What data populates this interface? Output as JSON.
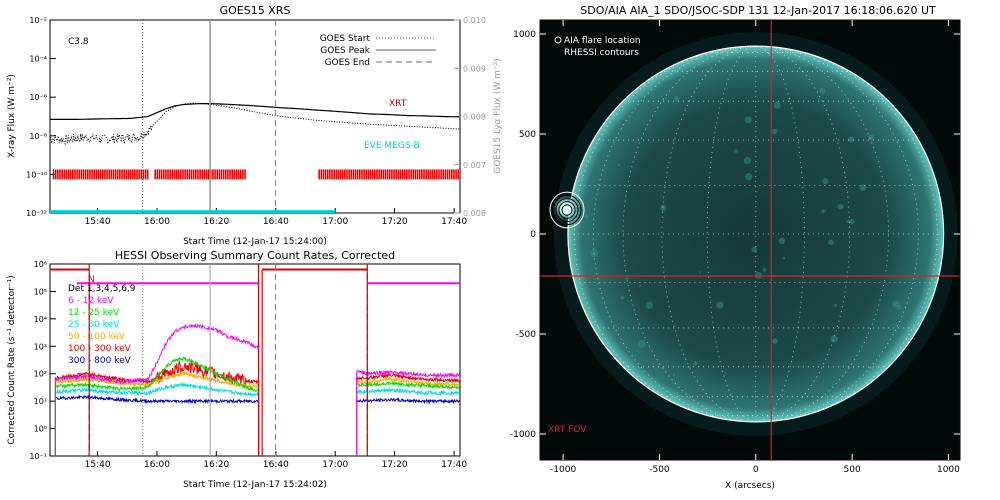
{
  "chart_data": [
    {
      "type": "line",
      "title": "GOES15 XRS",
      "xlabel": "Start Time (12-Jan-17 15:24:00)",
      "ylabel": "X-ray Flux (W m⁻²)",
      "ylabel_right": "GOES15 Lyα Flux (W m⁻²)",
      "flare_class": "C3.8",
      "ylim_log10": [
        -12,
        -2
      ],
      "ylim_right": [
        0.006,
        0.01
      ],
      "y_ticks": [
        "10⁻¹²",
        "10⁻¹⁰",
        "10⁻⁸",
        "10⁻⁶",
        "10⁻⁴",
        "10⁻²"
      ],
      "y_ticks_log10": [
        -12,
        -10,
        -8,
        -6,
        -4,
        -2
      ],
      "y_ticks_right": [
        "0.006",
        "0.007",
        "0.008",
        "0.009",
        "0.010"
      ],
      "y_ticks_right_values": [
        0.006,
        0.007,
        0.008,
        0.009,
        0.01
      ],
      "xlim_min": [
        15.4,
        17.7
      ],
      "x_ticks": [
        "15:40",
        "16:00",
        "16:20",
        "16:40",
        "17:00",
        "17:20",
        "17:40"
      ],
      "x_ticks_min": [
        15.667,
        16.0,
        16.333,
        16.667,
        17.0,
        17.333,
        17.667
      ],
      "legend": [
        {
          "label": "GOES Start",
          "style": "dotted",
          "time": 15.92
        },
        {
          "label": "GOES Peak",
          "style": "solid",
          "time": 16.298
        },
        {
          "label": "GOES End",
          "style": "dashed",
          "time": 16.665
        }
      ],
      "series": [
        {
          "name": "XRT",
          "color": "#cc0000",
          "axis": "left",
          "x": [
            15.4,
            15.55,
            15.7,
            15.85,
            15.95,
            16.0,
            16.05,
            16.1,
            16.15,
            16.2,
            16.25,
            16.3,
            16.4,
            16.5,
            16.6,
            16.7,
            16.8,
            16.9,
            17.0,
            17.1,
            17.2,
            17.3,
            17.4,
            17.5,
            17.6,
            17.7
          ],
          "log10_flux": [
            -7.15,
            -7.15,
            -7.12,
            -7.1,
            -7.0,
            -6.8,
            -6.6,
            -6.45,
            -6.38,
            -6.35,
            -6.33,
            -6.33,
            -6.37,
            -6.42,
            -6.48,
            -6.55,
            -6.6,
            -6.67,
            -6.73,
            -6.8,
            -6.87,
            -6.9,
            -6.95,
            -6.97,
            -7.0,
            -7.02
          ]
        },
        {
          "name": "Lyα",
          "color": "#000000",
          "axis": "right",
          "x": [
            15.4,
            15.5,
            15.6,
            15.7,
            15.8,
            15.9,
            15.95,
            16.0,
            16.05,
            16.1,
            16.15,
            16.2,
            16.25,
            16.3,
            16.4,
            16.5,
            16.6,
            16.7,
            16.8,
            16.9,
            17.0,
            17.2,
            17.4,
            17.6,
            17.7
          ],
          "values": [
            0.00755,
            0.00752,
            0.00757,
            0.00753,
            0.00755,
            0.00758,
            0.0077,
            0.0079,
            0.0081,
            0.0082,
            0.00826,
            0.00828,
            0.00827,
            0.00825,
            0.0082,
            0.00813,
            0.00806,
            0.008,
            0.00796,
            0.00792,
            0.00789,
            0.00784,
            0.0078,
            0.00776,
            0.00774
          ]
        },
        {
          "name": "EVE MEGS-B",
          "color": "#00d0d0",
          "axis": "left",
          "x": [
            15.4,
            17.0
          ],
          "log10_flux": [
            -11.9,
            -11.9
          ]
        }
      ],
      "xrt_coverage": {
        "label": "XRT",
        "level_log10": -10,
        "intervals_min": [
          [
            15.42,
            15.95
          ],
          [
            15.99,
            16.5
          ],
          [
            16.91,
            17.7
          ]
        ]
      },
      "eve_label": "EVE MEGS-B"
    },
    {
      "type": "line",
      "title": "HESSI Observing Summary Count Rates, Corrected",
      "xlabel": "Start Time (12-Jan-17 15:24:02)",
      "ylabel": "Corrected Count Rate (s⁻¹ detector⁻¹)",
      "ylim_log10": [
        -1,
        6
      ],
      "y_ticks": [
        "10⁻¹",
        "10⁰",
        "10¹",
        "10²",
        "10³",
        "10⁴",
        "10⁵",
        "10⁶"
      ],
      "y_ticks_log10": [
        -1,
        0,
        1,
        2,
        3,
        4,
        5,
        6
      ],
      "xlim_min": [
        15.4,
        17.7
      ],
      "x_ticks": [
        "15:40",
        "16:00",
        "16:20",
        "16:40",
        "17:00",
        "17:20",
        "17:40"
      ],
      "x_ticks_min": [
        15.667,
        16.0,
        16.333,
        16.667,
        17.0,
        17.333,
        17.667
      ],
      "detectors": "Det 1,3,4,5,6,9",
      "night_label": "N",
      "vlines": [
        {
          "time": 15.92,
          "style": "dotted",
          "color": "#888888"
        },
        {
          "time": 16.298,
          "style": "solid",
          "color": "#aaaaaa"
        },
        {
          "time": 16.665,
          "style": "dashed",
          "color": "#888888"
        },
        {
          "time": 15.62,
          "style": "dashed",
          "color": "#dd0000"
        },
        {
          "time": 16.57,
          "style": "solid",
          "color": "#dd0000"
        },
        {
          "time": 17.18,
          "style": "dashed",
          "color": "#dd0000"
        }
      ],
      "state_lines": [
        {
          "name": "magenta",
          "color": "#ff00ff",
          "log10": 5.3,
          "intervals_min": [
            [
              15.55,
              16.57
            ],
            [
              17.18,
              17.7
            ]
          ]
        },
        {
          "name": "red",
          "color": "#dd0000",
          "log10": 5.8,
          "intervals_min": [
            [
              15.4,
              15.62
            ],
            [
              16.59,
              17.18
            ]
          ]
        }
      ],
      "series": [
        {
          "name": "6 - 12 keV",
          "color": "#ff00ff",
          "x": [
            15.45,
            15.6,
            15.8,
            15.95,
            16.0,
            16.05,
            16.1,
            16.15,
            16.2,
            16.25,
            16.3,
            16.35,
            16.4,
            16.5,
            16.55,
            17.18,
            17.3,
            17.5,
            17.7
          ],
          "log10": [
            1.8,
            1.9,
            1.7,
            1.8,
            2.4,
            3.1,
            3.55,
            3.7,
            3.75,
            3.72,
            3.65,
            3.55,
            3.35,
            3.15,
            3.0,
            2.0,
            2.05,
            1.95,
            1.95
          ]
        },
        {
          "name": "12 - 25 keV",
          "color": "#00dd00",
          "x": [
            15.45,
            15.6,
            15.8,
            15.95,
            16.0,
            16.05,
            16.1,
            16.15,
            16.2,
            16.3,
            16.4,
            16.5,
            16.55,
            17.18,
            17.3,
            17.5,
            17.7
          ],
          "log10": [
            1.55,
            1.6,
            1.45,
            1.5,
            1.9,
            2.25,
            2.5,
            2.55,
            2.45,
            2.1,
            1.8,
            1.5,
            1.4,
            1.6,
            1.65,
            1.55,
            1.5
          ]
        },
        {
          "name": "25 - 50 keV",
          "color": "#00dddd",
          "x": [
            15.45,
            15.6,
            15.8,
            15.95,
            16.05,
            16.15,
            16.3,
            16.45,
            16.55,
            17.18,
            17.3,
            17.5,
            17.7
          ],
          "log10": [
            1.35,
            1.4,
            1.3,
            1.3,
            1.5,
            1.6,
            1.45,
            1.3,
            1.25,
            1.35,
            1.4,
            1.3,
            1.3
          ]
        },
        {
          "name": "50 - 100 keV",
          "color": "#ffaa00",
          "x": [
            15.45,
            15.6,
            15.8,
            15.95,
            16.05,
            16.15,
            16.3,
            16.45,
            16.55,
            17.18,
            17.3,
            17.5,
            17.7
          ],
          "log10": [
            1.7,
            1.8,
            1.65,
            1.6,
            1.85,
            2.0,
            1.8,
            1.6,
            1.55,
            1.7,
            1.8,
            1.65,
            1.6
          ]
        },
        {
          "name": "100 - 300 keV",
          "color": "#ee0000",
          "x": [
            15.45,
            15.6,
            15.8,
            15.95,
            16.05,
            16.15,
            16.3,
            16.45,
            16.55,
            17.18,
            17.3,
            17.5,
            17.7
          ],
          "log10": [
            1.85,
            2.0,
            1.8,
            1.7,
            2.0,
            2.3,
            2.05,
            1.8,
            1.7,
            1.85,
            1.95,
            1.8,
            1.75
          ]
        },
        {
          "name": "300 - 800 keV",
          "color": "#0000cc",
          "x": [
            15.45,
            15.6,
            15.8,
            15.95,
            16.1,
            16.3,
            16.5,
            16.55,
            17.12,
            17.3,
            17.5,
            17.7
          ],
          "log10": [
            1.1,
            1.15,
            1.05,
            1.0,
            1.0,
            1.0,
            1.0,
            1.0,
            1.0,
            1.05,
            1.0,
            1.0
          ]
        }
      ],
      "gaps_min": [
        [
          15.4,
          15.43
        ],
        [
          16.57,
          17.12
        ]
      ]
    },
    {
      "type": "heatmap",
      "title": "SDO/AIA AIA_1 SDO/JSOC-SDP 131 12-Jan-2017 16:18:06.620 UT",
      "xlabel": "X (arcsecs)",
      "ylabel": "",
      "xlim": [
        -1120,
        1060
      ],
      "ylim": [
        -1130,
        1070
      ],
      "x_ticks": [
        "-1000",
        "-500",
        "0",
        "500",
        "1000"
      ],
      "x_ticks_values": [
        -1000,
        -500,
        0,
        500,
        1000
      ],
      "y_ticks": [
        "1000",
        "500",
        "0",
        "-500",
        "-1000"
      ],
      "y_ticks_values": [
        1000,
        500,
        0,
        -500,
        -1000
      ],
      "legend": [
        {
          "label": "AIA flare location",
          "symbol": "circle"
        },
        {
          "label": "RHESSI contours",
          "symbol": "none"
        }
      ],
      "solar_radius_arcsec": 975,
      "flare_location": [
        -985,
        130
      ],
      "xrt_fov_label": "XRT FOV",
      "xrt_fov_box": {
        "x0": -1120,
        "y0": -1130,
        "x1": 1060,
        "y1": 1070
      },
      "xrt_fov_cross": {
        "x": 80,
        "y": -210
      }
    }
  ]
}
